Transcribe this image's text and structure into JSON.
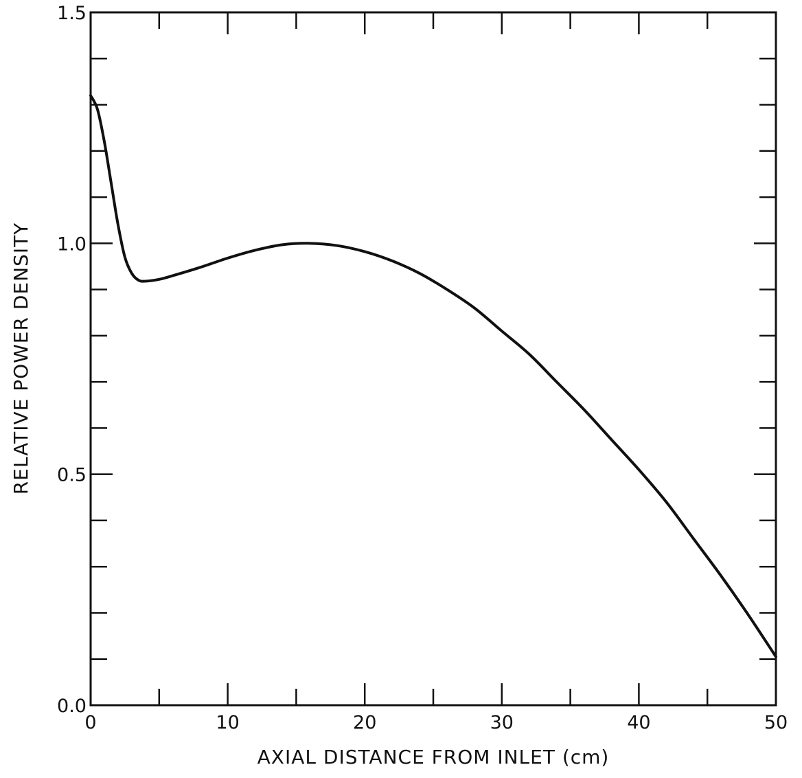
{
  "chart_data": {
    "type": "line",
    "title": "",
    "xlabel": "AXIAL DISTANCE FROM INLET (cm)",
    "ylabel": "RELATIVE POWER DENSITY",
    "xlim": [
      0,
      50
    ],
    "ylim": [
      0,
      1.5
    ],
    "x_major_ticks": [
      0,
      10,
      20,
      30,
      40,
      50
    ],
    "x_tick_labels": [
      "0",
      "10",
      "20",
      "30",
      "40",
      "50"
    ],
    "x_minor_ticks": [
      5,
      15,
      25,
      35,
      45
    ],
    "y_tick_values": [
      0.0,
      0.5,
      1.0,
      1.5
    ],
    "y_tick_labels": [
      "0.0",
      "0.5",
      "1.0",
      "1.5"
    ],
    "y_minor_ticks": [
      0.1,
      0.2,
      0.3,
      0.4,
      0.6,
      0.7,
      0.8,
      0.9,
      1.1,
      1.2,
      1.3,
      1.4
    ],
    "grid": false,
    "legend": "none",
    "line_color": "#111111",
    "series": [
      {
        "x": [
          0,
          0.5,
          1,
          1.5,
          2,
          2.5,
          3,
          3.5,
          4,
          5,
          6,
          8,
          10,
          12,
          14,
          16,
          18,
          20,
          22,
          24,
          26,
          28,
          30,
          32,
          34,
          36,
          38,
          40,
          42,
          44,
          46,
          48,
          50
        ],
        "values": [
          1.32,
          1.29,
          1.22,
          1.13,
          1.04,
          0.97,
          0.935,
          0.92,
          0.918,
          0.922,
          0.93,
          0.948,
          0.968,
          0.985,
          0.997,
          1.0,
          0.995,
          0.982,
          0.962,
          0.935,
          0.9,
          0.86,
          0.81,
          0.76,
          0.7,
          0.64,
          0.575,
          0.51,
          0.44,
          0.36,
          0.28,
          0.195,
          0.105
        ]
      }
    ]
  }
}
